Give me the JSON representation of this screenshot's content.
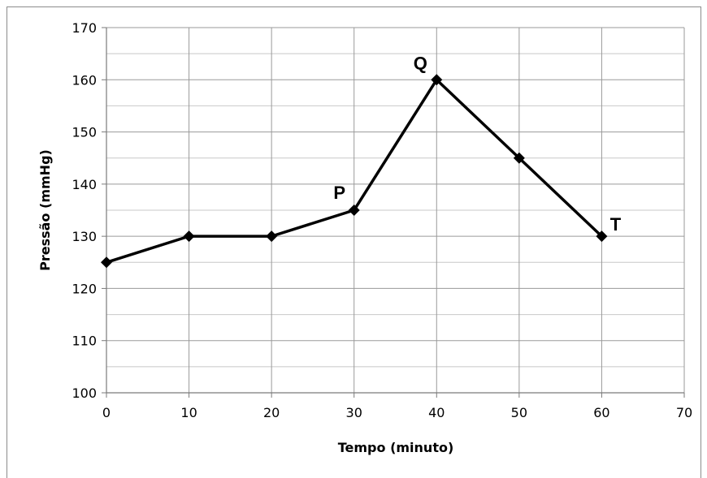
{
  "chart_data": {
    "type": "line",
    "title": "",
    "xlabel": "Tempo (minuto)",
    "ylabel": "Pressão (mmHg)",
    "xlim": [
      0,
      70
    ],
    "ylim": [
      100,
      170
    ],
    "x_ticks": [
      "0",
      "10",
      "20",
      "30",
      "40",
      "50",
      "60",
      "70"
    ],
    "y_ticks": [
      "100",
      "110",
      "120",
      "130",
      "140",
      "150",
      "160",
      "170"
    ],
    "grid": true,
    "legend": "none",
    "series": [
      {
        "x": [
          0,
          10,
          20,
          30,
          40,
          50,
          60
        ],
        "y": [
          125,
          130,
          130,
          135,
          160,
          145,
          130
        ],
        "color": "#000000",
        "marker": "diamond"
      }
    ],
    "annotations": [
      {
        "text": "P",
        "x": 30,
        "y": 135
      },
      {
        "text": "Q",
        "x": 40,
        "y": 160
      },
      {
        "text": "T",
        "x": 60,
        "y": 130
      }
    ]
  }
}
